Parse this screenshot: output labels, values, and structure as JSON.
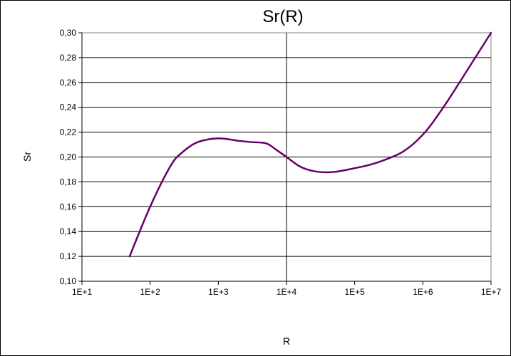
{
  "chart_data": {
    "type": "line",
    "title": "Sr(R)",
    "xlabel": "R",
    "ylabel": "Sr",
    "xscale": "log",
    "xlim": [
      10,
      10000000
    ],
    "ylim": [
      0.1,
      0.3
    ],
    "x_tick_labels": [
      "1E+1",
      "1E+2",
      "1E+3",
      "1E+4",
      "1E+5",
      "1E+6",
      "1E+7"
    ],
    "y_tick_labels": [
      "0,10",
      "0,12",
      "0,14",
      "0,16",
      "0,18",
      "0,20",
      "0,22",
      "0,24",
      "0,26",
      "0,28",
      "0,30"
    ],
    "grid": {
      "horizontal": true,
      "vertical_at_x": 10000
    },
    "legend": false,
    "series": [
      {
        "color": "#660066",
        "x": [
          50,
          100,
          200,
          300,
          500,
          1000,
          2000,
          3000,
          5000,
          7000,
          10000,
          15000,
          20000,
          30000,
          50000,
          100000,
          200000,
          500000,
          1000000,
          2000000,
          5000000,
          10000000
        ],
        "y": [
          0.12,
          0.16,
          0.193,
          0.204,
          0.212,
          0.215,
          0.213,
          0.212,
          0.211,
          0.206,
          0.2,
          0.193,
          0.19,
          0.188,
          0.188,
          0.191,
          0.195,
          0.204,
          0.218,
          0.24,
          0.274,
          0.3
        ]
      }
    ]
  }
}
